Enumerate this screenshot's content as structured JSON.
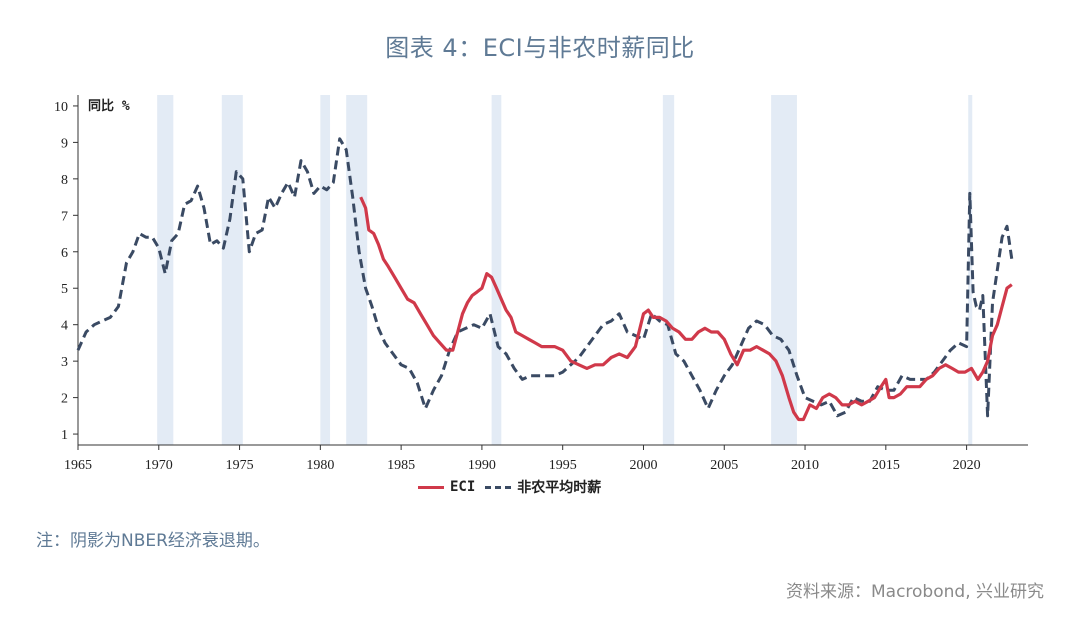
{
  "title": "图表 4：ECI与非农时薪同比",
  "note": "注：阴影为NBER经济衰退期。",
  "source": "资料来源：Macrobond, 兴业研究",
  "colors": {
    "eci": "#d0394a",
    "payroll": "#3a4a63",
    "recession": "#e3ebf5",
    "axis": "#333333"
  },
  "chart_data": {
    "type": "line",
    "ylabel": "同比 %",
    "xlim": [
      1965,
      2023.8
    ],
    "ylim": [
      0.7,
      10.3
    ],
    "x_ticks": [
      "1965",
      "1970",
      "1975",
      "1980",
      "1985",
      "1990",
      "1995",
      "2000",
      "2005",
      "2010",
      "2015",
      "2020"
    ],
    "y_ticks": [
      "1",
      "2",
      "3",
      "4",
      "5",
      "6",
      "7",
      "8",
      "9",
      "10"
    ],
    "legend": [
      "ECI",
      "非农平均时薪"
    ],
    "legend_position": "bottom",
    "recessions": [
      [
        1969.9,
        1970.9
      ],
      [
        1973.9,
        1975.2
      ],
      [
        1980.0,
        1980.6
      ],
      [
        1981.6,
        1982.9
      ],
      [
        1990.6,
        1991.2
      ],
      [
        2001.2,
        2001.9
      ],
      [
        2007.9,
        2009.5
      ],
      [
        2020.1,
        2020.35
      ]
    ],
    "series": [
      {
        "name": "ECI",
        "dash": "solid",
        "x": [
          1982.5,
          1982.8,
          1983.0,
          1983.3,
          1983.6,
          1983.9,
          1984.2,
          1984.6,
          1985.0,
          1985.4,
          1985.8,
          1986.2,
          1986.6,
          1987.0,
          1987.4,
          1987.8,
          1988.2,
          1988.5,
          1988.8,
          1989.1,
          1989.4,
          1989.7,
          1990.0,
          1990.3,
          1990.6,
          1990.9,
          1991.2,
          1991.5,
          1991.8,
          1992.1,
          1992.5,
          1992.9,
          1993.3,
          1993.7,
          1994.1,
          1994.5,
          1995.0,
          1995.5,
          1996.0,
          1996.5,
          1997.0,
          1997.5,
          1998.0,
          1998.5,
          1999.0,
          1999.5,
          2000.0,
          2000.3,
          2000.6,
          2001.0,
          2001.4,
          2001.8,
          2002.2,
          2002.6,
          2003.0,
          2003.4,
          2003.8,
          2004.2,
          2004.6,
          2005.0,
          2005.4,
          2005.8,
          2006.2,
          2006.6,
          2007.0,
          2007.4,
          2007.8,
          2008.2,
          2008.6,
          2009.0,
          2009.3,
          2009.6,
          2009.9,
          2010.3,
          2010.7,
          2011.1,
          2011.5,
          2011.9,
          2012.3,
          2012.7,
          2013.1,
          2013.5,
          2013.9,
          2014.3,
          2014.7,
          2015.0,
          2015.2,
          2015.5,
          2015.9,
          2016.3,
          2016.7,
          2017.1,
          2017.5,
          2017.9,
          2018.3,
          2018.7,
          2019.1,
          2019.5,
          2019.9,
          2020.3,
          2020.7,
          2021.0,
          2021.3,
          2021.6,
          2021.9,
          2022.2,
          2022.5,
          2022.8
        ],
        "y": [
          7.5,
          7.2,
          6.6,
          6.5,
          6.2,
          5.8,
          5.6,
          5.3,
          5.0,
          4.7,
          4.6,
          4.3,
          4.0,
          3.7,
          3.5,
          3.3,
          3.3,
          3.8,
          4.3,
          4.6,
          4.8,
          4.9,
          5.0,
          5.4,
          5.3,
          5.0,
          4.7,
          4.4,
          4.2,
          3.8,
          3.7,
          3.6,
          3.5,
          3.4,
          3.4,
          3.4,
          3.3,
          3.0,
          2.9,
          2.8,
          2.9,
          2.9,
          3.1,
          3.2,
          3.1,
          3.4,
          4.3,
          4.4,
          4.2,
          4.2,
          4.1,
          3.9,
          3.8,
          3.6,
          3.6,
          3.8,
          3.9,
          3.8,
          3.8,
          3.6,
          3.2,
          2.9,
          3.3,
          3.3,
          3.4,
          3.3,
          3.2,
          3.0,
          2.6,
          2.0,
          1.6,
          1.4,
          1.4,
          1.8,
          1.7,
          2.0,
          2.1,
          2.0,
          1.8,
          1.8,
          1.9,
          1.8,
          1.9,
          2.0,
          2.3,
          2.5,
          2.0,
          2.0,
          2.1,
          2.3,
          2.3,
          2.3,
          2.5,
          2.6,
          2.8,
          2.9,
          2.8,
          2.7,
          2.7,
          2.8,
          2.5,
          2.7,
          3.0,
          3.7,
          4.0,
          4.5,
          5.0,
          5.1
        ]
      },
      {
        "name": "非农平均时薪",
        "dash": "dashed",
        "x": [
          1965.0,
          1965.5,
          1966.0,
          1966.5,
          1967.0,
          1967.5,
          1968.0,
          1968.4,
          1968.8,
          1969.2,
          1969.6,
          1970.0,
          1970.4,
          1970.8,
          1971.2,
          1971.6,
          1972.0,
          1972.4,
          1972.8,
          1973.2,
          1973.6,
          1974.0,
          1974.4,
          1974.8,
          1975.2,
          1975.6,
          1976.0,
          1976.4,
          1976.8,
          1977.2,
          1977.6,
          1978.0,
          1978.4,
          1978.8,
          1979.2,
          1979.6,
          1980.0,
          1980.4,
          1980.8,
          1981.2,
          1981.6,
          1982.0,
          1982.4,
          1982.8,
          1983.2,
          1983.6,
          1984.0,
          1984.5,
          1985.0,
          1985.5,
          1986.0,
          1986.5,
          1987.0,
          1987.5,
          1988.0,
          1988.5,
          1989.0,
          1989.5,
          1990.0,
          1990.5,
          1991.0,
          1991.5,
          1992.0,
          1992.5,
          1993.0,
          1993.5,
          1994.0,
          1994.5,
          1995.0,
          1995.5,
          1996.0,
          1996.5,
          1997.0,
          1997.5,
          1998.0,
          1998.5,
          1999.0,
          1999.5,
          2000.0,
          2000.5,
          2001.0,
          2001.5,
          2002.0,
          2002.5,
          2003.0,
          2003.5,
          2004.0,
          2004.5,
          2005.0,
          2005.5,
          2006.0,
          2006.5,
          2007.0,
          2007.5,
          2008.0,
          2008.5,
          2009.0,
          2009.5,
          2010.0,
          2010.5,
          2011.0,
          2011.5,
          2012.0,
          2012.5,
          2013.0,
          2013.5,
          2014.0,
          2014.5,
          2015.0,
          2015.5,
          2016.0,
          2016.5,
          2017.0,
          2017.5,
          2018.0,
          2018.5,
          2019.0,
          2019.5,
          2020.0,
          2020.2,
          2020.4,
          2020.6,
          2020.8,
          2021.0,
          2021.3,
          2021.6,
          2021.9,
          2022.2,
          2022.5,
          2022.8
        ],
        "y": [
          3.3,
          3.8,
          4.0,
          4.1,
          4.2,
          4.5,
          5.7,
          6.0,
          6.5,
          6.4,
          6.4,
          6.1,
          5.4,
          6.3,
          6.5,
          7.3,
          7.4,
          7.8,
          7.2,
          6.2,
          6.3,
          6.1,
          6.9,
          8.2,
          8.0,
          6.0,
          6.5,
          6.6,
          7.5,
          7.2,
          7.6,
          7.9,
          7.5,
          8.5,
          8.2,
          7.6,
          7.8,
          7.7,
          7.9,
          9.1,
          8.8,
          7.5,
          6.0,
          5.0,
          4.5,
          3.9,
          3.5,
          3.2,
          2.9,
          2.8,
          2.4,
          1.7,
          2.2,
          2.6,
          3.3,
          3.8,
          3.9,
          4.0,
          3.9,
          4.3,
          3.4,
          3.2,
          2.8,
          2.5,
          2.6,
          2.6,
          2.6,
          2.6,
          2.7,
          2.9,
          3.1,
          3.4,
          3.7,
          4.0,
          4.1,
          4.3,
          3.8,
          3.7,
          3.6,
          4.3,
          4.1,
          4.0,
          3.2,
          3.0,
          2.6,
          2.2,
          1.7,
          2.2,
          2.6,
          2.9,
          3.4,
          3.9,
          4.1,
          4.0,
          3.7,
          3.6,
          3.3,
          2.6,
          2.0,
          1.9,
          1.8,
          1.9,
          1.5,
          1.6,
          2.0,
          1.9,
          1.9,
          2.3,
          2.2,
          2.2,
          2.6,
          2.5,
          2.5,
          2.5,
          2.7,
          3.0,
          3.3,
          3.5,
          3.4,
          7.6,
          4.9,
          4.5,
          4.4,
          4.8,
          1.5,
          4.6,
          5.5,
          6.4,
          6.7,
          5.8
        ]
      }
    ]
  }
}
